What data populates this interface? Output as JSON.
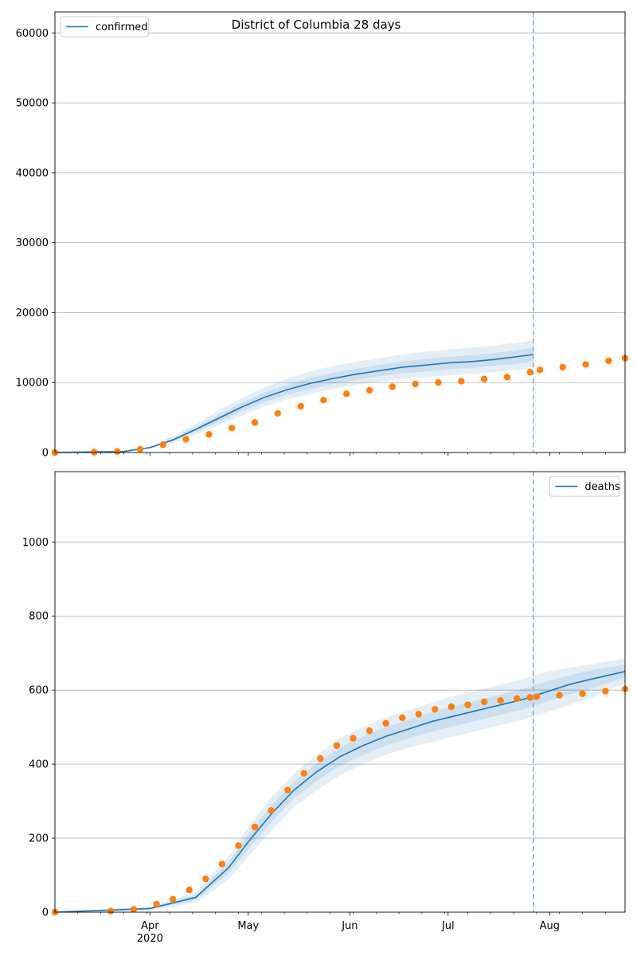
{
  "colors": {
    "model_line": "#1f77b4",
    "observed_points": "#ff7f0e",
    "band": "#1f77b4",
    "grid": "#b0b0b0",
    "vline": "#7fb2cf"
  },
  "chart_data": [
    {
      "type": "line",
      "title": "District of Columbia 28 days",
      "legend": {
        "entries": [
          "confirmed"
        ],
        "placement": "top-left"
      },
      "x_axis": {
        "type": "date",
        "range": [
          "2020-03-03",
          "2020-08-24"
        ],
        "month_ticks": [
          {
            "date": "2020-04-01",
            "label": "Apr"
          },
          {
            "date": "2020-05-01",
            "label": "May"
          },
          {
            "date": "2020-06-01",
            "label": "Jun"
          },
          {
            "date": "2020-07-01",
            "label": "Jul"
          },
          {
            "date": "2020-08-01",
            "label": "Aug"
          }
        ],
        "year_label": "",
        "tick_labels_visible": false
      },
      "y_axis": {
        "ylim": [
          0,
          63000
        ],
        "ticks": [
          0,
          10000,
          20000,
          30000,
          40000,
          50000,
          60000
        ],
        "tick_labels": [
          "0",
          "10000",
          "20000",
          "30000",
          "40000",
          "50000",
          "60000"
        ],
        "grid": true
      },
      "vline_date": "2020-07-27",
      "model": {
        "name": "confirmed",
        "dates": [
          "2020-03-03",
          "2020-03-24",
          "2020-04-01",
          "2020-04-08",
          "2020-04-15",
          "2020-04-22",
          "2020-04-29",
          "2020-05-06",
          "2020-05-13",
          "2020-05-20",
          "2020-05-27",
          "2020-06-03",
          "2020-06-10",
          "2020-06-17",
          "2020-06-24",
          "2020-07-01",
          "2020-07-08",
          "2020-07-15",
          "2020-07-22",
          "2020-07-27"
        ],
        "values": [
          0,
          150,
          700,
          1800,
          3300,
          4900,
          6500,
          7900,
          9000,
          9900,
          10600,
          11200,
          11700,
          12200,
          12500,
          12800,
          13000,
          13300,
          13700,
          14000
        ],
        "bands": [
          {
            "lower": [
              0,
              100,
              600,
              1400,
              2600,
              3900,
              5300,
              6600,
              7600,
              8400,
              9100,
              9700,
              10100,
              10500,
              10800,
              11000,
              11200,
              11500,
              11800,
              12000
            ],
            "upper": [
              0,
              200,
              900,
              2300,
              4100,
              6000,
              7800,
              9300,
              10600,
              11600,
              12400,
              13000,
              13500,
              14000,
              14400,
              14700,
              15000,
              15300,
              15700,
              16000
            ]
          },
          {
            "lower": [
              0,
              120,
              650,
              1600,
              2900,
              4400,
              5900,
              7200,
              8300,
              9100,
              9800,
              10400,
              10900,
              11300,
              11600,
              11900,
              12100,
              12400,
              12700,
              13000
            ],
            "upper": [
              0,
              180,
              800,
              2000,
              3700,
              5400,
              7100,
              8600,
              9700,
              10700,
              11400,
              12000,
              12500,
              13000,
              13400,
              13700,
              13900,
              14200,
              14600,
              15000
            ]
          }
        ]
      },
      "observed": {
        "dates": [
          "2020-03-03",
          "2020-03-15",
          "2020-03-22",
          "2020-03-29",
          "2020-04-05",
          "2020-04-12",
          "2020-04-19",
          "2020-04-26",
          "2020-05-03",
          "2020-05-10",
          "2020-05-17",
          "2020-05-24",
          "2020-05-31",
          "2020-06-07",
          "2020-06-14",
          "2020-06-21",
          "2020-06-28",
          "2020-07-05",
          "2020-07-12",
          "2020-07-19",
          "2020-07-26",
          "2020-07-29",
          "2020-08-05",
          "2020-08-12",
          "2020-08-19",
          "2020-08-24"
        ],
        "values": [
          0,
          50,
          150,
          450,
          1100,
          1900,
          2600,
          3500,
          4300,
          5600,
          6600,
          7500,
          8400,
          8900,
          9400,
          9800,
          10000,
          10200,
          10500,
          10800,
          11500,
          11800,
          12200,
          12600,
          13100,
          13500
        ]
      }
    },
    {
      "type": "line",
      "title": "",
      "legend": {
        "entries": [
          "deaths"
        ],
        "placement": "top-right"
      },
      "x_axis": {
        "type": "date",
        "range": [
          "2020-03-03",
          "2020-08-24"
        ],
        "month_ticks": [
          {
            "date": "2020-04-01",
            "label": "Apr"
          },
          {
            "date": "2020-05-01",
            "label": "May"
          },
          {
            "date": "2020-06-01",
            "label": "Jun"
          },
          {
            "date": "2020-07-01",
            "label": "Jul"
          },
          {
            "date": "2020-08-01",
            "label": "Aug"
          }
        ],
        "year_label": "2020",
        "tick_labels_visible": true
      },
      "y_axis": {
        "ylim": [
          0,
          1190
        ],
        "ticks": [
          0,
          200,
          400,
          600,
          800,
          1000
        ],
        "tick_labels": [
          "0",
          "200",
          "400",
          "600",
          "800",
          "1000"
        ],
        "grid": true
      },
      "vline_date": "2020-07-27",
      "model": {
        "name": "deaths",
        "dates": [
          "2020-03-03",
          "2020-04-01",
          "2020-04-15",
          "2020-04-25",
          "2020-05-01",
          "2020-05-08",
          "2020-05-15",
          "2020-05-22",
          "2020-05-29",
          "2020-06-05",
          "2020-06-12",
          "2020-06-19",
          "2020-06-26",
          "2020-07-03",
          "2020-07-10",
          "2020-07-17",
          "2020-07-24",
          "2020-07-31",
          "2020-08-07",
          "2020-08-14",
          "2020-08-24"
        ],
        "values": [
          0,
          10,
          40,
          120,
          190,
          265,
          330,
          380,
          420,
          450,
          475,
          495,
          515,
          530,
          545,
          560,
          575,
          595,
          615,
          630,
          650
        ],
        "bands": [
          {
            "lower": [
              0,
              5,
              25,
              90,
              150,
              220,
              285,
              330,
              370,
              400,
              425,
              445,
              460,
              475,
              490,
              505,
              520,
              540,
              560,
              580,
              620
            ],
            "upper": [
              0,
              15,
              55,
              150,
              230,
              310,
              375,
              425,
              470,
              500,
              525,
              545,
              565,
              585,
              600,
              615,
              630,
              650,
              660,
              670,
              685
            ]
          },
          {
            "lower": [
              0,
              8,
              33,
              105,
              170,
              243,
              308,
              355,
              395,
              425,
              450,
              470,
              488,
              503,
              518,
              533,
              548,
              568,
              588,
              605,
              635
            ],
            "upper": [
              0,
              12,
              47,
              135,
              210,
              288,
              353,
              403,
              445,
              475,
              500,
              520,
              540,
              558,
              573,
              588,
              603,
              623,
              640,
              655,
              668
            ]
          }
        ]
      },
      "observed": {
        "dates": [
          "2020-03-03",
          "2020-03-20",
          "2020-03-27",
          "2020-04-03",
          "2020-04-08",
          "2020-04-13",
          "2020-04-18",
          "2020-04-23",
          "2020-04-28",
          "2020-05-03",
          "2020-05-08",
          "2020-05-13",
          "2020-05-18",
          "2020-05-23",
          "2020-05-28",
          "2020-06-02",
          "2020-06-07",
          "2020-06-12",
          "2020-06-17",
          "2020-06-22",
          "2020-06-27",
          "2020-07-02",
          "2020-07-07",
          "2020-07-12",
          "2020-07-17",
          "2020-07-22",
          "2020-07-26",
          "2020-07-28",
          "2020-08-04",
          "2020-08-11",
          "2020-08-18",
          "2020-08-24"
        ],
        "values": [
          0,
          3,
          8,
          22,
          35,
          60,
          90,
          130,
          180,
          230,
          275,
          330,
          375,
          415,
          450,
          470,
          490,
          510,
          525,
          535,
          548,
          555,
          560,
          568,
          572,
          577,
          580,
          582,
          586,
          590,
          597,
          603
        ]
      }
    }
  ]
}
